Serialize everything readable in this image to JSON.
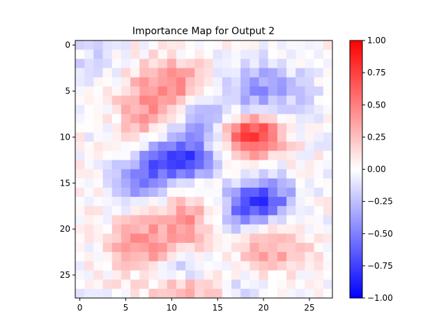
{
  "chart_data": {
    "type": "heatmap",
    "title": "Importance Map for Output 2",
    "xlabel": "",
    "ylabel": "",
    "rows": 28,
    "cols": 28,
    "colormap": "bwr",
    "vmin": -1.0,
    "vmax": 1.0,
    "x_ticks": [
      0,
      5,
      10,
      15,
      20,
      25
    ],
    "y_ticks": [
      0,
      5,
      10,
      15,
      20,
      25
    ],
    "colorbar_ticks": [
      "1.00",
      "0.75",
      "0.50",
      "0.25",
      "0.00",
      "−0.25",
      "−0.50",
      "−0.75",
      "−1.00"
    ],
    "colorbar_tick_values": [
      1.0,
      0.75,
      0.5,
      0.25,
      0.0,
      -0.25,
      -0.5,
      -0.75,
      -1.0
    ],
    "grid": false,
    "blobs": [
      {
        "row": 9.8,
        "col": 19.0,
        "sr": 1.6,
        "sc": 2.2,
        "amp": 0.85
      },
      {
        "row": 4.2,
        "col": 10.0,
        "sr": 1.8,
        "sc": 3.0,
        "amp": 0.45
      },
      {
        "row": 7.5,
        "col": 7.0,
        "sr": 2.0,
        "sc": 2.0,
        "amp": 0.35
      },
      {
        "row": 12.5,
        "col": 10.5,
        "sr": 1.6,
        "sc": 2.6,
        "amp": -0.85
      },
      {
        "row": 15.0,
        "col": 6.5,
        "sr": 1.5,
        "sc": 1.8,
        "amp": -0.5
      },
      {
        "row": 16.8,
        "col": 19.8,
        "sr": 1.6,
        "sc": 2.4,
        "amp": -0.75
      },
      {
        "row": 5.0,
        "col": 19.5,
        "sr": 2.2,
        "sc": 3.5,
        "amp": -0.4
      },
      {
        "row": 8.5,
        "col": 13.0,
        "sr": 1.8,
        "sc": 1.8,
        "amp": -0.3
      },
      {
        "row": 22.0,
        "col": 7.0,
        "sr": 2.2,
        "sc": 2.6,
        "amp": 0.45
      },
      {
        "row": 19.0,
        "col": 12.0,
        "sr": 2.0,
        "sc": 2.2,
        "amp": 0.4
      },
      {
        "row": 22.0,
        "col": 21.0,
        "sr": 2.0,
        "sc": 2.5,
        "amp": 0.35
      },
      {
        "row": 24.5,
        "col": 10.0,
        "sr": 1.0,
        "sc": 2.5,
        "amp": -0.35
      },
      {
        "row": 26.5,
        "col": 12.0,
        "sr": 1.2,
        "sc": 3.0,
        "amp": 0.3
      },
      {
        "row": 19.0,
        "col": 17.0,
        "sr": 1.5,
        "sc": 2.0,
        "amp": -0.3
      },
      {
        "row": 2.0,
        "col": 1.5,
        "sr": 1.8,
        "sc": 1.8,
        "amp": -0.15
      },
      {
        "row": 26.5,
        "col": 18.5,
        "sr": 1.0,
        "sc": 2.0,
        "amp": -0.2
      }
    ]
  }
}
